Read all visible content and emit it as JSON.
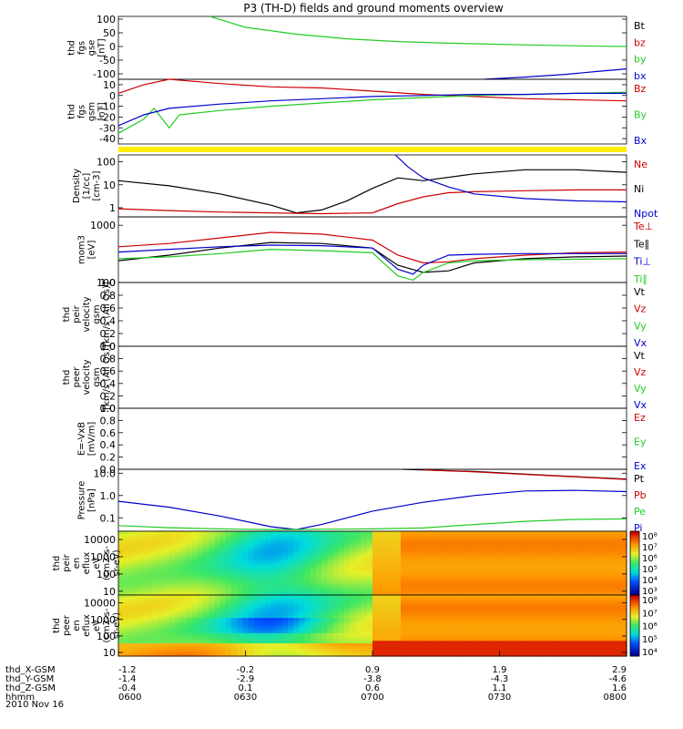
{
  "title": "P3 (TH-D) fields and ground moments overview",
  "date_label": "2010 Nov 16",
  "colors": {
    "black": "#000000",
    "red": "#cc0000",
    "green": "#22cc22",
    "blue": "#0000cc",
    "yellow": "#ffee00"
  },
  "chart_data": [
    {
      "id": "fgs_gse",
      "type": "line",
      "ylabel_lines": [
        "thd",
        "fgs",
        "gse",
        "[nT]"
      ],
      "ylim": [
        -120,
        110
      ],
      "yticks": [
        "100",
        "50",
        "0",
        "-50",
        "-100"
      ],
      "ytick_values": [
        100,
        50,
        0,
        -50,
        -100
      ],
      "legend": [
        {
          "label": "Bt",
          "color": "#000000"
        },
        {
          "label": "bz",
          "color": "#cc0000"
        },
        {
          "label": "by",
          "color": "#22cc22"
        },
        {
          "label": "bx",
          "color": "#0000cc"
        }
      ],
      "series": [
        {
          "color": "#22cc22",
          "x": [
            0.18,
            0.25,
            0.35,
            0.45,
            0.55,
            0.65,
            0.75,
            0.85,
            0.95,
            1.0
          ],
          "y": [
            110,
            70,
            45,
            28,
            18,
            12,
            8,
            4,
            1,
            0
          ]
        },
        {
          "color": "#0000cc",
          "x": [
            0.72,
            0.8,
            0.88,
            0.95,
            1.0
          ],
          "y": [
            -120,
            -112,
            -102,
            -90,
            -82
          ]
        }
      ]
    },
    {
      "id": "fgs_gsm",
      "type": "line",
      "ylabel_lines": [
        "thd",
        "fgs",
        "gsm",
        "[nT]"
      ],
      "ylim": [
        -45,
        15
      ],
      "yticks": [
        "10",
        "0",
        "-10",
        "-20",
        "-30",
        "-40"
      ],
      "ytick_values": [
        10,
        0,
        -10,
        -20,
        -30,
        -40
      ],
      "legend": [
        {
          "label": "Bz",
          "color": "#cc0000"
        },
        {
          "label": "By",
          "color": "#22cc22"
        },
        {
          "label": "Bx",
          "color": "#0000cc"
        }
      ],
      "series": [
        {
          "color": "#cc0000",
          "x": [
            0.0,
            0.05,
            0.1,
            0.2,
            0.3,
            0.4,
            0.5,
            0.6,
            0.7,
            0.8,
            0.9,
            1.0
          ],
          "y": [
            2,
            10,
            15,
            11,
            8,
            7,
            4,
            1,
            -1,
            -3,
            -4,
            -5
          ]
        },
        {
          "color": "#22cc22",
          "x": [
            0.0,
            0.05,
            0.07,
            0.1,
            0.12,
            0.2,
            0.3,
            0.4,
            0.5,
            0.6,
            0.7,
            0.8,
            0.9,
            1.0
          ],
          "y": [
            -35,
            -22,
            -12,
            -30,
            -18,
            -14,
            -10,
            -7,
            -4,
            -2,
            0,
            1,
            2,
            3
          ]
        },
        {
          "color": "#0000cc",
          "x": [
            0.0,
            0.05,
            0.1,
            0.2,
            0.3,
            0.4,
            0.5,
            0.6,
            0.7,
            0.8,
            0.9,
            1.0
          ],
          "y": [
            -28,
            -18,
            -12,
            -8,
            -5,
            -3,
            -1,
            0,
            1,
            1,
            2,
            2
          ]
        }
      ]
    },
    {
      "id": "density",
      "type": "line",
      "log": true,
      "ylabel_lines": [
        "Density",
        "[1/cc]",
        "[cm-3]"
      ],
      "ylim": [
        0.4,
        200
      ],
      "yticks": [
        "100",
        "10",
        "1"
      ],
      "ytick_values": [
        100,
        10,
        1
      ],
      "legend": [
        {
          "label": "Ne",
          "color": "#cc0000"
        },
        {
          "label": "Ni",
          "color": "#000000"
        },
        {
          "label": "Npot",
          "color": "#0000cc"
        }
      ],
      "series": [
        {
          "color": "#000000",
          "x": [
            0.0,
            0.1,
            0.2,
            0.3,
            0.35,
            0.4,
            0.45,
            0.5,
            0.55,
            0.6,
            0.7,
            0.8,
            0.9,
            1.0
          ],
          "y": [
            15,
            9,
            4,
            1.3,
            0.6,
            0.8,
            2,
            7,
            20,
            15,
            30,
            45,
            45,
            35
          ]
        },
        {
          "color": "#cc0000",
          "x": [
            0.0,
            0.1,
            0.2,
            0.3,
            0.4,
            0.5,
            0.55,
            0.6,
            0.65,
            0.7,
            0.8,
            0.9,
            1.0
          ],
          "y": [
            0.9,
            0.75,
            0.65,
            0.6,
            0.55,
            0.6,
            1.5,
            3,
            4.5,
            5,
            5.5,
            6,
            6
          ]
        },
        {
          "color": "#0000cc",
          "x": [
            0.545,
            0.57,
            0.6,
            0.65,
            0.7,
            0.8,
            0.9,
            1.0
          ],
          "y": [
            200,
            60,
            20,
            8,
            4,
            2.5,
            2,
            1.8
          ]
        }
      ]
    },
    {
      "id": "mom_temp",
      "type": "line",
      "log": true,
      "ylabel_lines": [
        "mom3",
        "[eV]"
      ],
      "ylim": [
        100,
        1400
      ],
      "yticks": [
        "1000",
        "100"
      ],
      "ytick_values": [
        1000,
        100
      ],
      "legend": [
        {
          "label": "Te⊥",
          "color": "#cc0000"
        },
        {
          "label": "Te∥",
          "color": "#000000"
        },
        {
          "label": "Ti⊥",
          "color": "#0000cc"
        },
        {
          "label": "Ti∥",
          "color": "#22cc22"
        }
      ],
      "series": [
        {
          "color": "#cc0000",
          "x": [
            0.0,
            0.1,
            0.2,
            0.3,
            0.4,
            0.5,
            0.55,
            0.6,
            0.65,
            0.7,
            0.8,
            0.9,
            1.0
          ],
          "y": [
            420,
            480,
            600,
            750,
            700,
            550,
            300,
            220,
            230,
            260,
            300,
            330,
            340
          ]
        },
        {
          "color": "#000000",
          "x": [
            0.0,
            0.1,
            0.2,
            0.3,
            0.4,
            0.5,
            0.55,
            0.6,
            0.65,
            0.7,
            0.8,
            0.9,
            1.0
          ],
          "y": [
            240,
            300,
            400,
            500,
            480,
            400,
            200,
            150,
            160,
            220,
            260,
            280,
            290
          ]
        },
        {
          "color": "#0000cc",
          "x": [
            0.0,
            0.1,
            0.2,
            0.3,
            0.4,
            0.5,
            0.55,
            0.58,
            0.6,
            0.65,
            0.7,
            0.8,
            0.9,
            1.0
          ],
          "y": [
            340,
            380,
            420,
            450,
            440,
            400,
            170,
            140,
            200,
            300,
            310,
            320,
            320,
            320
          ]
        },
        {
          "color": "#22cc22",
          "x": [
            0.0,
            0.1,
            0.2,
            0.3,
            0.4,
            0.5,
            0.55,
            0.58,
            0.6,
            0.65,
            0.7,
            0.8,
            0.9,
            1.0
          ],
          "y": [
            260,
            280,
            320,
            380,
            360,
            330,
            130,
            110,
            150,
            220,
            240,
            250,
            255,
            260
          ]
        }
      ]
    },
    {
      "id": "peir_velocity",
      "type": "line",
      "ylabel_lines": [
        "thd",
        "peir",
        "velocity",
        "gsm",
        "[km/s (All Qs)]"
      ],
      "ylim": [
        0,
        1
      ],
      "yticks": [
        "1.0",
        "0.8",
        "0.6",
        "0.4",
        "0.2",
        "0.0"
      ],
      "ytick_values": [
        1.0,
        0.8,
        0.6,
        0.4,
        0.2,
        0.0
      ],
      "legend": [
        {
          "label": "Vt",
          "color": "#000000"
        },
        {
          "label": "Vz",
          "color": "#cc0000"
        },
        {
          "label": "Vy",
          "color": "#22cc22"
        },
        {
          "label": "Vx",
          "color": "#0000cc"
        }
      ],
      "series": []
    },
    {
      "id": "peer_velocity",
      "type": "line",
      "ylabel_lines": [
        "thd",
        "peer",
        "velocity",
        "gsm",
        "[km/s (All Qs)]"
      ],
      "ylim": [
        0,
        1
      ],
      "yticks": [
        "1.0",
        "0.8",
        "0.6",
        "0.4",
        "0.2",
        "0.0"
      ],
      "ytick_values": [
        1.0,
        0.8,
        0.6,
        0.4,
        0.2,
        0.0
      ],
      "legend": [
        {
          "label": "Vt",
          "color": "#000000"
        },
        {
          "label": "Vz",
          "color": "#cc0000"
        },
        {
          "label": "Vy",
          "color": "#22cc22"
        },
        {
          "label": "Vx",
          "color": "#0000cc"
        }
      ],
      "series": []
    },
    {
      "id": "efield",
      "type": "line",
      "ylabel_lines": [
        "E=-VxB",
        "[mV/m]"
      ],
      "ylim": [
        0,
        1
      ],
      "yticks": [
        "1.0",
        "0.8",
        "0.6",
        "0.4",
        "0.2",
        "0.0"
      ],
      "ytick_values": [
        1.0,
        0.8,
        0.6,
        0.4,
        0.2,
        0.0
      ],
      "legend": [
        {
          "label": "Ez",
          "color": "#cc0000"
        },
        {
          "label": "Ey",
          "color": "#22cc22"
        },
        {
          "label": "Ex",
          "color": "#0000cc"
        }
      ],
      "series": []
    },
    {
      "id": "pressure",
      "type": "line",
      "log": true,
      "ylabel_lines": [
        "Pressure",
        "[nPa]"
      ],
      "ylim": [
        0.025,
        15
      ],
      "yticks": [
        "10.0",
        "1.0",
        "0.1"
      ],
      "ytick_values": [
        10,
        1,
        0.1
      ],
      "legend": [
        {
          "label": "Pt",
          "color": "#000000"
        },
        {
          "label": "Pb",
          "color": "#cc0000"
        },
        {
          "label": "Pe",
          "color": "#22cc22"
        },
        {
          "label": "Pi",
          "color": "#0000cc"
        }
      ],
      "series": [
        {
          "color": "#000000",
          "x": [
            0.56,
            0.7,
            0.85,
            1.0
          ],
          "y": [
            15,
            12,
            8,
            5.5
          ]
        },
        {
          "color": "#cc0000",
          "x": [
            0.6,
            0.7,
            0.85,
            1.0
          ],
          "y": [
            14,
            11.5,
            7.8,
            5.3
          ]
        },
        {
          "color": "#0000cc",
          "x": [
            0.0,
            0.1,
            0.2,
            0.3,
            0.35,
            0.4,
            0.5,
            0.6,
            0.7,
            0.8,
            0.9,
            1.0
          ],
          "y": [
            0.55,
            0.3,
            0.12,
            0.04,
            0.03,
            0.05,
            0.2,
            0.5,
            1.0,
            1.6,
            1.7,
            1.5
          ]
        },
        {
          "color": "#22cc22",
          "x": [
            0.0,
            0.1,
            0.2,
            0.3,
            0.35,
            0.4,
            0.5,
            0.6,
            0.7,
            0.8,
            0.9,
            1.0
          ],
          "y": [
            0.045,
            0.036,
            0.032,
            0.03,
            0.03,
            0.031,
            0.032,
            0.035,
            0.05,
            0.07,
            0.085,
            0.09
          ]
        }
      ]
    },
    {
      "id": "peir_spec",
      "type": "heatmap",
      "ylabel_lines": [
        "thd",
        "peir",
        "en",
        "eflux",
        "eV",
        "(cm2-s-",
        "sr-eV)"
      ],
      "yticks": [
        "10000",
        "1000",
        "100",
        "10"
      ],
      "ytick_values": [
        10000,
        1000,
        100,
        10
      ],
      "ylim": [
        6,
        30000
      ],
      "colorbar_labels": [
        "10⁸",
        "10⁷",
        "10⁶",
        "10⁵",
        "10⁴",
        "10³"
      ]
    },
    {
      "id": "peer_spec",
      "type": "heatmap",
      "ylabel_lines": [
        "thd",
        "peer",
        "en",
        "eflux",
        "eV",
        "(cm2-s-",
        "sr-eV)"
      ],
      "yticks": [
        "10000",
        "1000",
        "100",
        "10"
      ],
      "ytick_values": [
        10000,
        1000,
        100,
        10
      ],
      "ylim": [
        6,
        30000
      ],
      "colorbar_labels": [
        "10⁸",
        "10⁷",
        "10⁶",
        "10⁵",
        "10⁴"
      ]
    }
  ],
  "xaxis": {
    "rows": [
      {
        "label": "thd_X-GSM",
        "values": [
          "-1.2",
          "-0.2",
          "0.9",
          "1.9",
          "2.9"
        ]
      },
      {
        "label": "thd_Y-GSM",
        "values": [
          "-1.4",
          "-2.9",
          "-3.8",
          "-4.3",
          "-4.6"
        ]
      },
      {
        "label": "thd_Z-GSM",
        "values": [
          "-0.4",
          "0.1",
          "0.6",
          "1.1",
          "1.6"
        ]
      },
      {
        "label": "hhmm",
        "values": [
          "0600",
          "0630",
          "0700",
          "0730",
          "0800"
        ]
      }
    ]
  }
}
